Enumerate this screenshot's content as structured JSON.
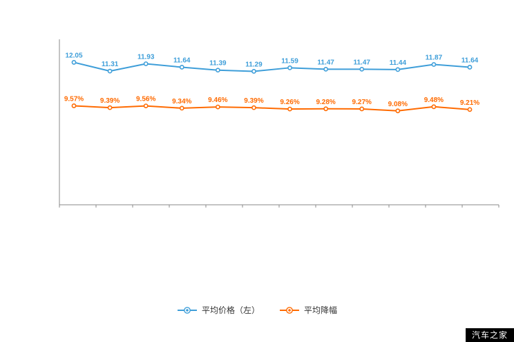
{
  "watermark": "汽车之家",
  "colors": {
    "axis": "#8a8a8a",
    "series1": "#3e9ed9",
    "series2": "#ff6a00",
    "watermark_bg": "#000000",
    "watermark_text": "#ffffff"
  },
  "chart_data": {
    "type": "line",
    "title": "",
    "x": [
      1,
      2,
      3,
      4,
      5,
      6,
      7,
      8,
      9,
      10,
      11,
      12
    ],
    "series": [
      {
        "name": "平均价格（左）",
        "axis": "left",
        "color": "#3e9ed9",
        "values": [
          12.05,
          11.31,
          11.93,
          11.64,
          11.39,
          11.29,
          11.59,
          11.47,
          11.47,
          11.44,
          11.87,
          11.64
        ],
        "labels": [
          "12.05",
          "11.31",
          "11.93",
          "11.64",
          "11.39",
          "11.29",
          "11.59",
          "11.47",
          "11.47",
          "11.44",
          "11.87",
          "11.64"
        ]
      },
      {
        "name": "平均降幅",
        "axis": "right",
        "color": "#ff6a00",
        "values": [
          9.57,
          9.39,
          9.56,
          9.34,
          9.46,
          9.39,
          9.26,
          9.28,
          9.27,
          9.08,
          9.48,
          9.21
        ],
        "labels": [
          "9.57%",
          "9.39%",
          "9.56%",
          "9.34%",
          "9.46%",
          "9.39%",
          "9.26%",
          "9.28%",
          "9.27%",
          "9.08%",
          "9.48%",
          "9.21%"
        ]
      }
    ],
    "ylim_left": [
      0,
      14
    ],
    "ylim_right": [
      0,
      16
    ],
    "grid": false,
    "axis_tick_count": 13,
    "legend_position": "bottom"
  }
}
